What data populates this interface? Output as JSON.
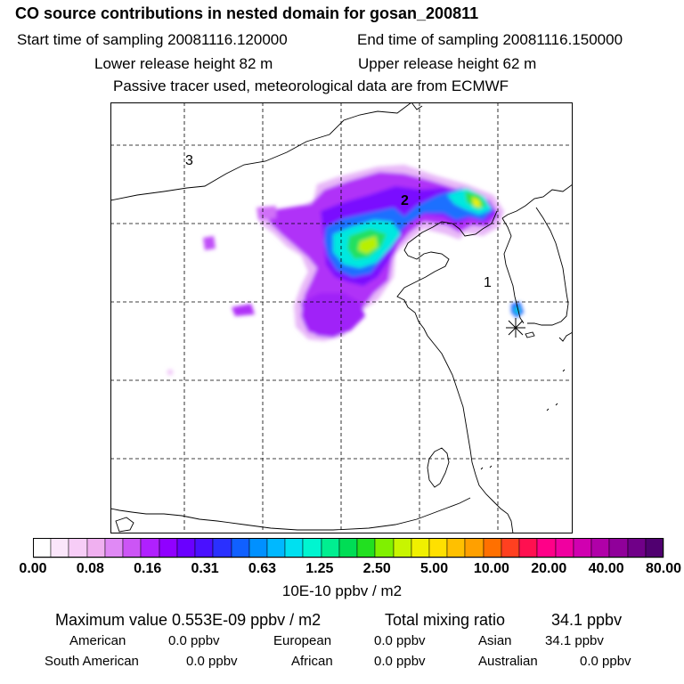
{
  "header": {
    "title": "CO  source contributions in nested domain for gosan_200811",
    "start_label": "Start time of sampling 20081116.120000",
    "end_label": "End time of sampling 20081116.150000",
    "lower_label": "Lower release height   82 m",
    "upper_label": "Upper release height   62 m",
    "info": "Passive tracer used, meteorological data are from ECMWF"
  },
  "map": {
    "region_labels": [
      "3",
      "2",
      "1"
    ],
    "receptor": "gosan",
    "grid": "dashed lat/lon lines"
  },
  "colorbar": {
    "ticks": [
      "0.00",
      "0.08",
      "0.16",
      "0.31",
      "0.63",
      "1.25",
      "2.50",
      "5.00",
      "10.00",
      "20.00",
      "40.00",
      "80.00"
    ],
    "unit": "10E-10 ppbv / m2",
    "colors": [
      "#ffffff",
      "#fbe6fb",
      "#f7cdf7",
      "#f0b0f0",
      "#e089f5",
      "#cc55f5",
      "#b020ff",
      "#9000ff",
      "#6a00ff",
      "#4a10ff",
      "#2a30ff",
      "#1060ff",
      "#0090ff",
      "#00b8ff",
      "#00e0f0",
      "#00f5d0",
      "#00ee90",
      "#00dd55",
      "#22e020",
      "#80f000",
      "#c8f500",
      "#f0f000",
      "#ffe000",
      "#ffc000",
      "#ffa000",
      "#ff7000",
      "#ff4020",
      "#ff1050",
      "#ff0088",
      "#f000a0",
      "#d000b0",
      "#b000a8",
      "#90009a",
      "#700088",
      "#500070"
    ]
  },
  "stats": {
    "max_label": "Maximum value  0.553E-09 ppbv / m2",
    "total_label": "Total mixing ratio",
    "total_value": "34.1 ppbv"
  },
  "contributions": [
    {
      "name": "American",
      "value": "0.0 ppbv"
    },
    {
      "name": "European",
      "value": "0.0 ppbv"
    },
    {
      "name": "Asian",
      "value": "34.1 ppbv"
    },
    {
      "name": "South American",
      "value": "0.0 ppbv"
    },
    {
      "name": "African",
      "value": "0.0 ppbv"
    },
    {
      "name": "Australian",
      "value": "0.0 ppbv"
    }
  ]
}
